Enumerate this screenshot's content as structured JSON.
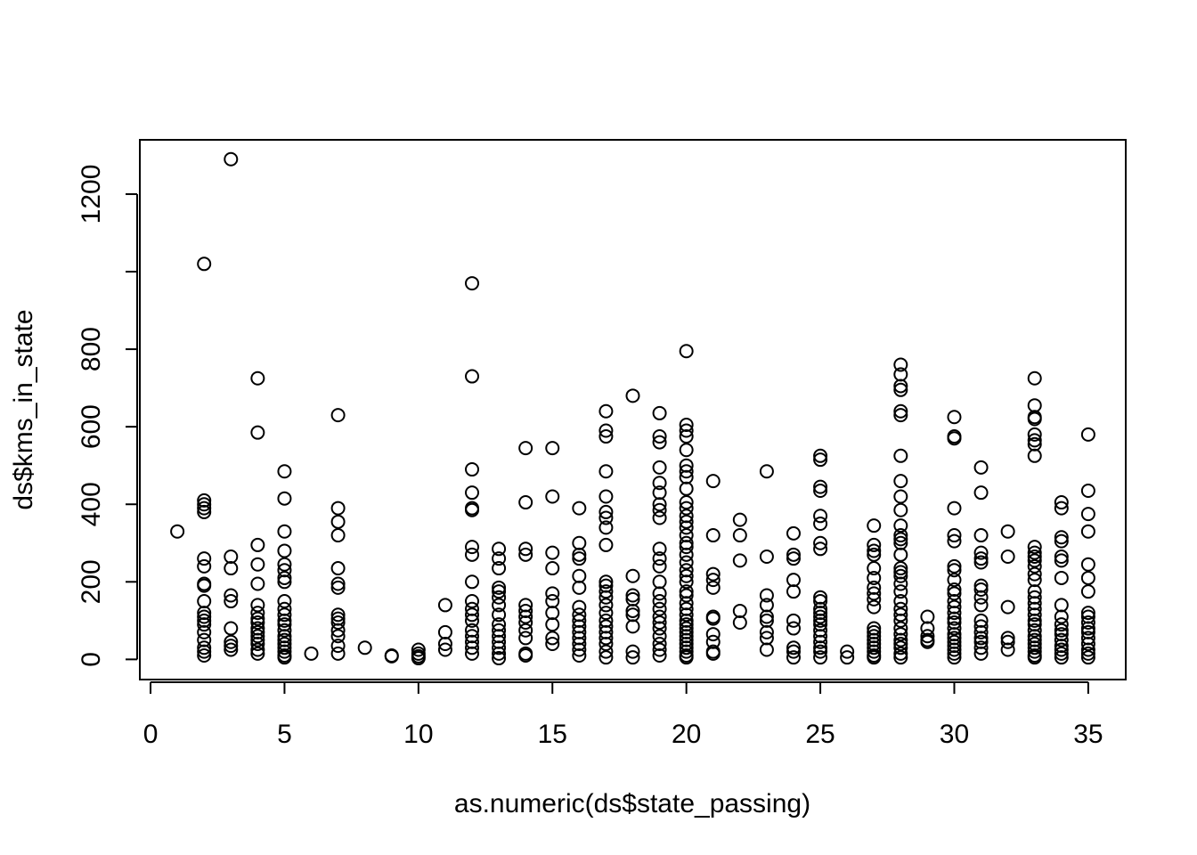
{
  "chart_data": {
    "type": "scatter",
    "title": "",
    "xlabel": "as.numeric(ds$state_passing)",
    "ylabel": "ds$kms_in_state",
    "xlim": [
      -0.4,
      36.4
    ],
    "ylim": [
      -52,
      1340
    ],
    "x_ticks": [
      0,
      5,
      10,
      15,
      20,
      25,
      30,
      35
    ],
    "y_ticks": [
      0,
      200,
      400,
      600,
      800,
      1000,
      1200
    ],
    "y_tick_labels": [
      "0",
      "200",
      "400",
      "600",
      "800",
      "",
      "1200"
    ],
    "grid": false,
    "legend": "none",
    "marker": "open-circle",
    "color": "#000000",
    "points": [
      [
        1,
        330
      ],
      [
        2,
        1020
      ],
      [
        2,
        410
      ],
      [
        2,
        400
      ],
      [
        2,
        390
      ],
      [
        2,
        380
      ],
      [
        2,
        260
      ],
      [
        2,
        240
      ],
      [
        2,
        195
      ],
      [
        2,
        190
      ],
      [
        2,
        150
      ],
      [
        2,
        120
      ],
      [
        2,
        110
      ],
      [
        2,
        100
      ],
      [
        2,
        90
      ],
      [
        2,
        70
      ],
      [
        2,
        50
      ],
      [
        2,
        30
      ],
      [
        2,
        20
      ],
      [
        2,
        10
      ],
      [
        3,
        1290
      ],
      [
        3,
        265
      ],
      [
        3,
        235
      ],
      [
        3,
        165
      ],
      [
        3,
        150
      ],
      [
        3,
        80
      ],
      [
        3,
        45
      ],
      [
        3,
        35
      ],
      [
        3,
        25
      ],
      [
        4,
        725
      ],
      [
        4,
        585
      ],
      [
        4,
        295
      ],
      [
        4,
        245
      ],
      [
        4,
        195
      ],
      [
        4,
        140
      ],
      [
        4,
        120
      ],
      [
        4,
        105
      ],
      [
        4,
        95
      ],
      [
        4,
        80
      ],
      [
        4,
        70
      ],
      [
        4,
        60
      ],
      [
        4,
        50
      ],
      [
        4,
        40
      ],
      [
        4,
        25
      ],
      [
        4,
        15
      ],
      [
        5,
        485
      ],
      [
        5,
        415
      ],
      [
        5,
        330
      ],
      [
        5,
        280
      ],
      [
        5,
        245
      ],
      [
        5,
        230
      ],
      [
        5,
        210
      ],
      [
        5,
        200
      ],
      [
        5,
        150
      ],
      [
        5,
        130
      ],
      [
        5,
        115
      ],
      [
        5,
        100
      ],
      [
        5,
        90
      ],
      [
        5,
        75
      ],
      [
        5,
        60
      ],
      [
        5,
        50
      ],
      [
        5,
        40
      ],
      [
        5,
        30
      ],
      [
        5,
        20
      ],
      [
        5,
        10
      ],
      [
        5,
        5
      ],
      [
        6,
        15
      ],
      [
        7,
        630
      ],
      [
        7,
        390
      ],
      [
        7,
        355
      ],
      [
        7,
        320
      ],
      [
        7,
        235
      ],
      [
        7,
        195
      ],
      [
        7,
        185
      ],
      [
        7,
        115
      ],
      [
        7,
        105
      ],
      [
        7,
        95
      ],
      [
        7,
        75
      ],
      [
        7,
        60
      ],
      [
        7,
        35
      ],
      [
        7,
        15
      ],
      [
        8,
        30
      ],
      [
        9,
        10
      ],
      [
        9,
        8
      ],
      [
        10,
        25
      ],
      [
        10,
        15
      ],
      [
        10,
        8
      ],
      [
        10,
        3
      ],
      [
        11,
        140
      ],
      [
        11,
        70
      ],
      [
        11,
        40
      ],
      [
        11,
        25
      ],
      [
        12,
        970
      ],
      [
        12,
        730
      ],
      [
        12,
        490
      ],
      [
        12,
        430
      ],
      [
        12,
        390
      ],
      [
        12,
        385
      ],
      [
        12,
        290
      ],
      [
        12,
        270
      ],
      [
        12,
        200
      ],
      [
        12,
        150
      ],
      [
        12,
        130
      ],
      [
        12,
        115
      ],
      [
        12,
        100
      ],
      [
        12,
        75
      ],
      [
        12,
        60
      ],
      [
        12,
        45
      ],
      [
        12,
        30
      ],
      [
        12,
        15
      ],
      [
        13,
        285
      ],
      [
        13,
        260
      ],
      [
        13,
        235
      ],
      [
        13,
        185
      ],
      [
        13,
        175
      ],
      [
        13,
        160
      ],
      [
        13,
        140
      ],
      [
        13,
        115
      ],
      [
        13,
        90
      ],
      [
        13,
        75
      ],
      [
        13,
        60
      ],
      [
        13,
        45
      ],
      [
        13,
        30
      ],
      [
        13,
        15
      ],
      [
        13,
        3
      ],
      [
        14,
        545
      ],
      [
        14,
        405
      ],
      [
        14,
        285
      ],
      [
        14,
        270
      ],
      [
        14,
        140
      ],
      [
        14,
        125
      ],
      [
        14,
        110
      ],
      [
        14,
        95
      ],
      [
        14,
        75
      ],
      [
        14,
        55
      ],
      [
        14,
        15
      ],
      [
        14,
        10
      ],
      [
        15,
        545
      ],
      [
        15,
        420
      ],
      [
        15,
        275
      ],
      [
        15,
        235
      ],
      [
        15,
        170
      ],
      [
        15,
        150
      ],
      [
        15,
        120
      ],
      [
        15,
        90
      ],
      [
        15,
        55
      ],
      [
        15,
        40
      ],
      [
        16,
        390
      ],
      [
        16,
        300
      ],
      [
        16,
        270
      ],
      [
        16,
        260
      ],
      [
        16,
        215
      ],
      [
        16,
        185
      ],
      [
        16,
        135
      ],
      [
        16,
        115
      ],
      [
        16,
        100
      ],
      [
        16,
        85
      ],
      [
        16,
        70
      ],
      [
        16,
        55
      ],
      [
        16,
        40
      ],
      [
        16,
        25
      ],
      [
        16,
        10
      ],
      [
        17,
        640
      ],
      [
        17,
        590
      ],
      [
        17,
        575
      ],
      [
        17,
        485
      ],
      [
        17,
        420
      ],
      [
        17,
        380
      ],
      [
        17,
        365
      ],
      [
        17,
        340
      ],
      [
        17,
        295
      ],
      [
        17,
        200
      ],
      [
        17,
        190
      ],
      [
        17,
        175
      ],
      [
        17,
        160
      ],
      [
        17,
        140
      ],
      [
        17,
        120
      ],
      [
        17,
        100
      ],
      [
        17,
        85
      ],
      [
        17,
        70
      ],
      [
        17,
        55
      ],
      [
        17,
        40
      ],
      [
        17,
        20
      ],
      [
        17,
        5
      ],
      [
        18,
        680
      ],
      [
        18,
        215
      ],
      [
        18,
        165
      ],
      [
        18,
        155
      ],
      [
        18,
        125
      ],
      [
        18,
        115
      ],
      [
        18,
        85
      ],
      [
        18,
        20
      ],
      [
        18,
        5
      ],
      [
        19,
        635
      ],
      [
        19,
        575
      ],
      [
        19,
        560
      ],
      [
        19,
        495
      ],
      [
        19,
        455
      ],
      [
        19,
        430
      ],
      [
        19,
        400
      ],
      [
        19,
        385
      ],
      [
        19,
        365
      ],
      [
        19,
        285
      ],
      [
        19,
        260
      ],
      [
        19,
        240
      ],
      [
        19,
        200
      ],
      [
        19,
        170
      ],
      [
        19,
        150
      ],
      [
        19,
        130
      ],
      [
        19,
        110
      ],
      [
        19,
        95
      ],
      [
        19,
        80
      ],
      [
        19,
        60
      ],
      [
        19,
        40
      ],
      [
        19,
        25
      ],
      [
        19,
        10
      ],
      [
        20,
        795
      ],
      [
        20,
        605
      ],
      [
        20,
        590
      ],
      [
        20,
        575
      ],
      [
        20,
        540
      ],
      [
        20,
        500
      ],
      [
        20,
        485
      ],
      [
        20,
        470
      ],
      [
        20,
        440
      ],
      [
        20,
        405
      ],
      [
        20,
        390
      ],
      [
        20,
        370
      ],
      [
        20,
        355
      ],
      [
        20,
        340
      ],
      [
        20,
        320
      ],
      [
        20,
        300
      ],
      [
        20,
        290
      ],
      [
        20,
        270
      ],
      [
        20,
        250
      ],
      [
        20,
        230
      ],
      [
        20,
        215
      ],
      [
        20,
        200
      ],
      [
        20,
        175
      ],
      [
        20,
        165
      ],
      [
        20,
        145
      ],
      [
        20,
        130
      ],
      [
        20,
        115
      ],
      [
        20,
        100
      ],
      [
        20,
        90
      ],
      [
        20,
        80
      ],
      [
        20,
        70
      ],
      [
        20,
        60
      ],
      [
        20,
        50
      ],
      [
        20,
        40
      ],
      [
        20,
        30
      ],
      [
        20,
        20
      ],
      [
        20,
        10
      ],
      [
        20,
        5
      ],
      [
        21,
        460
      ],
      [
        21,
        320
      ],
      [
        21,
        220
      ],
      [
        21,
        205
      ],
      [
        21,
        185
      ],
      [
        21,
        110
      ],
      [
        21,
        105
      ],
      [
        21,
        65
      ],
      [
        21,
        45
      ],
      [
        21,
        20
      ],
      [
        21,
        15
      ],
      [
        22,
        360
      ],
      [
        22,
        320
      ],
      [
        22,
        255
      ],
      [
        22,
        125
      ],
      [
        22,
        95
      ],
      [
        23,
        485
      ],
      [
        23,
        265
      ],
      [
        23,
        165
      ],
      [
        23,
        140
      ],
      [
        23,
        110
      ],
      [
        23,
        100
      ],
      [
        23,
        70
      ],
      [
        23,
        55
      ],
      [
        23,
        25
      ],
      [
        24,
        325
      ],
      [
        24,
        270
      ],
      [
        24,
        260
      ],
      [
        24,
        205
      ],
      [
        24,
        175
      ],
      [
        24,
        100
      ],
      [
        24,
        80
      ],
      [
        24,
        30
      ],
      [
        24,
        20
      ],
      [
        24,
        5
      ],
      [
        25,
        525
      ],
      [
        25,
        515
      ],
      [
        25,
        445
      ],
      [
        25,
        435
      ],
      [
        25,
        370
      ],
      [
        25,
        350
      ],
      [
        25,
        300
      ],
      [
        25,
        285
      ],
      [
        25,
        160
      ],
      [
        25,
        150
      ],
      [
        25,
        130
      ],
      [
        25,
        120
      ],
      [
        25,
        110
      ],
      [
        25,
        100
      ],
      [
        25,
        90
      ],
      [
        25,
        75
      ],
      [
        25,
        60
      ],
      [
        25,
        45
      ],
      [
        25,
        30
      ],
      [
        25,
        20
      ],
      [
        25,
        5
      ],
      [
        26,
        20
      ],
      [
        26,
        5
      ],
      [
        27,
        345
      ],
      [
        27,
        295
      ],
      [
        27,
        280
      ],
      [
        27,
        270
      ],
      [
        27,
        235
      ],
      [
        27,
        210
      ],
      [
        27,
        185
      ],
      [
        27,
        170
      ],
      [
        27,
        155
      ],
      [
        27,
        135
      ],
      [
        27,
        80
      ],
      [
        27,
        70
      ],
      [
        27,
        60
      ],
      [
        27,
        50
      ],
      [
        27,
        40
      ],
      [
        27,
        30
      ],
      [
        27,
        20
      ],
      [
        27,
        10
      ],
      [
        27,
        5
      ],
      [
        28,
        760
      ],
      [
        28,
        735
      ],
      [
        28,
        705
      ],
      [
        28,
        695
      ],
      [
        28,
        640
      ],
      [
        28,
        630
      ],
      [
        28,
        525
      ],
      [
        28,
        460
      ],
      [
        28,
        420
      ],
      [
        28,
        385
      ],
      [
        28,
        345
      ],
      [
        28,
        320
      ],
      [
        28,
        310
      ],
      [
        28,
        300
      ],
      [
        28,
        270
      ],
      [
        28,
        235
      ],
      [
        28,
        225
      ],
      [
        28,
        215
      ],
      [
        28,
        195
      ],
      [
        28,
        175
      ],
      [
        28,
        150
      ],
      [
        28,
        130
      ],
      [
        28,
        115
      ],
      [
        28,
        100
      ],
      [
        28,
        80
      ],
      [
        28,
        65
      ],
      [
        28,
        50
      ],
      [
        28,
        40
      ],
      [
        28,
        30
      ],
      [
        28,
        15
      ],
      [
        28,
        5
      ],
      [
        29,
        110
      ],
      [
        29,
        80
      ],
      [
        29,
        60
      ],
      [
        29,
        50
      ],
      [
        29,
        45
      ],
      [
        30,
        625
      ],
      [
        30,
        575
      ],
      [
        30,
        570
      ],
      [
        30,
        390
      ],
      [
        30,
        320
      ],
      [
        30,
        305
      ],
      [
        30,
        240
      ],
      [
        30,
        230
      ],
      [
        30,
        205
      ],
      [
        30,
        180
      ],
      [
        30,
        170
      ],
      [
        30,
        150
      ],
      [
        30,
        135
      ],
      [
        30,
        120
      ],
      [
        30,
        105
      ],
      [
        30,
        95
      ],
      [
        30,
        80
      ],
      [
        30,
        65
      ],
      [
        30,
        55
      ],
      [
        30,
        45
      ],
      [
        30,
        35
      ],
      [
        30,
        25
      ],
      [
        30,
        15
      ],
      [
        30,
        5
      ],
      [
        31,
        495
      ],
      [
        31,
        430
      ],
      [
        31,
        320
      ],
      [
        31,
        275
      ],
      [
        31,
        260
      ],
      [
        31,
        250
      ],
      [
        31,
        190
      ],
      [
        31,
        180
      ],
      [
        31,
        160
      ],
      [
        31,
        140
      ],
      [
        31,
        100
      ],
      [
        31,
        85
      ],
      [
        31,
        70
      ],
      [
        31,
        55
      ],
      [
        31,
        45
      ],
      [
        31,
        30
      ],
      [
        31,
        15
      ],
      [
        32,
        330
      ],
      [
        32,
        265
      ],
      [
        32,
        135
      ],
      [
        32,
        55
      ],
      [
        32,
        45
      ],
      [
        32,
        25
      ],
      [
        33,
        725
      ],
      [
        33,
        655
      ],
      [
        33,
        625
      ],
      [
        33,
        620
      ],
      [
        33,
        580
      ],
      [
        33,
        565
      ],
      [
        33,
        555
      ],
      [
        33,
        525
      ],
      [
        33,
        290
      ],
      [
        33,
        275
      ],
      [
        33,
        265
      ],
      [
        33,
        255
      ],
      [
        33,
        240
      ],
      [
        33,
        220
      ],
      [
        33,
        205
      ],
      [
        33,
        175
      ],
      [
        33,
        160
      ],
      [
        33,
        145
      ],
      [
        33,
        130
      ],
      [
        33,
        115
      ],
      [
        33,
        100
      ],
      [
        33,
        90
      ],
      [
        33,
        75
      ],
      [
        33,
        60
      ],
      [
        33,
        50
      ],
      [
        33,
        40
      ],
      [
        33,
        30
      ],
      [
        33,
        20
      ],
      [
        33,
        10
      ],
      [
        33,
        5
      ],
      [
        34,
        405
      ],
      [
        34,
        390
      ],
      [
        34,
        315
      ],
      [
        34,
        305
      ],
      [
        34,
        265
      ],
      [
        34,
        255
      ],
      [
        34,
        210
      ],
      [
        34,
        140
      ],
      [
        34,
        110
      ],
      [
        34,
        90
      ],
      [
        34,
        75
      ],
      [
        34,
        65
      ],
      [
        34,
        50
      ],
      [
        34,
        35
      ],
      [
        34,
        25
      ],
      [
        34,
        15
      ],
      [
        34,
        5
      ],
      [
        35,
        580
      ],
      [
        35,
        435
      ],
      [
        35,
        375
      ],
      [
        35,
        330
      ],
      [
        35,
        245
      ],
      [
        35,
        210
      ],
      [
        35,
        175
      ],
      [
        35,
        120
      ],
      [
        35,
        110
      ],
      [
        35,
        95
      ],
      [
        35,
        80
      ],
      [
        35,
        70
      ],
      [
        35,
        55
      ],
      [
        35,
        40
      ],
      [
        35,
        25
      ],
      [
        35,
        15
      ],
      [
        35,
        5
      ]
    ]
  }
}
